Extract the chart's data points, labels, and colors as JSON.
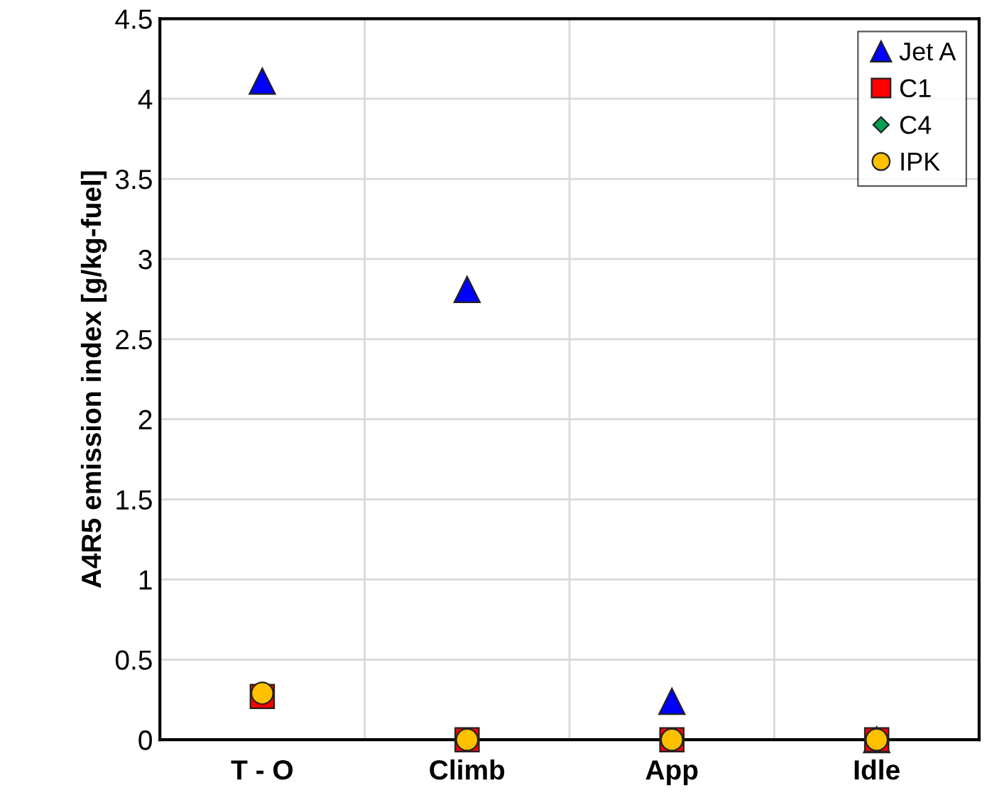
{
  "chart_data": {
    "type": "scatter",
    "ylabel": "A4R5 emission index [g/kg-fuel]",
    "categories": [
      "T - O",
      "Climb",
      "App",
      "Idle"
    ],
    "ylim": [
      0,
      4.5
    ],
    "yticks": [
      0,
      0.5,
      1,
      1.5,
      2,
      2.5,
      3,
      3.5,
      4,
      4.5
    ],
    "grid": true,
    "legend": "top right",
    "series": [
      {
        "name": "Jet A",
        "color": "#0000ff",
        "marker": "triangle",
        "values": [
          4.11,
          2.81,
          0.24,
          0
        ]
      },
      {
        "name": "C1",
        "color": "#ff0000",
        "marker": "square",
        "values": [
          0.27,
          0,
          0,
          0
        ]
      },
      {
        "name": "C4",
        "color": "#00a050",
        "marker": "diamond",
        "values": [
          null,
          null,
          null,
          null
        ]
      },
      {
        "name": "IPK",
        "color": "#ffc000",
        "marker": "circle",
        "values": [
          0.29,
          0,
          0,
          0
        ]
      }
    ]
  }
}
